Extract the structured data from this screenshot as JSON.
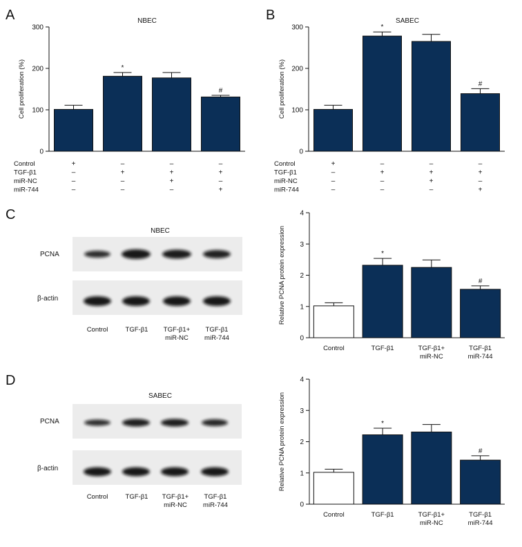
{
  "colors": {
    "bar_fill": "#0b2f57",
    "control_fill": "#ffffff",
    "axis": "#111111"
  },
  "chart_data": [
    {
      "panel": "A",
      "type": "bar",
      "title": "NBEC",
      "ylabel": "Cell proliferation (%)",
      "ylim": [
        0,
        300
      ],
      "yticks": [
        0,
        100,
        200,
        300
      ],
      "categories": [
        "1",
        "2",
        "3",
        "4"
      ],
      "values": [
        101,
        181,
        177,
        131
      ],
      "errors": [
        10,
        9,
        13,
        4
      ],
      "significance": [
        "",
        "*",
        "",
        "#"
      ],
      "control_white": false,
      "conditions": [
        {
          "label": "Control",
          "signs": [
            "+",
            "–",
            "–",
            "–"
          ]
        },
        {
          "label": "TGF-β1",
          "signs": [
            "–",
            "+",
            "+",
            "+"
          ]
        },
        {
          "label": "miR-NC",
          "signs": [
            "–",
            "–",
            "+",
            "–"
          ]
        },
        {
          "label": "miR-744",
          "signs": [
            "–",
            "–",
            "–",
            "+"
          ]
        }
      ]
    },
    {
      "panel": "B",
      "type": "bar",
      "title": "SABEC",
      "ylabel": "Cell proliferation (%)",
      "ylim": [
        0,
        300
      ],
      "yticks": [
        0,
        100,
        200,
        300
      ],
      "categories": [
        "1",
        "2",
        "3",
        "4"
      ],
      "values": [
        101,
        278,
        265,
        139
      ],
      "errors": [
        10,
        10,
        17,
        12
      ],
      "significance": [
        "",
        "*",
        "",
        "#"
      ],
      "control_white": false,
      "conditions": [
        {
          "label": "Control",
          "signs": [
            "+",
            "–",
            "–",
            "–"
          ]
        },
        {
          "label": "TGF-β1",
          "signs": [
            "–",
            "+",
            "+",
            "+"
          ]
        },
        {
          "label": "miR-NC",
          "signs": [
            "–",
            "–",
            "+",
            "–"
          ]
        },
        {
          "label": "miR-744",
          "signs": [
            "–",
            "–",
            "–",
            "+"
          ]
        }
      ]
    },
    {
      "panel": "C",
      "type": "bar",
      "title": "",
      "ylabel": "Relative PCNA protein expression",
      "ylim": [
        0,
        4
      ],
      "yticks": [
        0,
        1,
        2,
        3,
        4
      ],
      "categories": [
        [
          "Control"
        ],
        [
          "TGF-β1"
        ],
        [
          "TGF-β1+",
          "miR-NC"
        ],
        [
          "TGF-β1",
          "miR-744"
        ]
      ],
      "values": [
        1.02,
        2.32,
        2.25,
        1.55
      ],
      "errors": [
        0.1,
        0.22,
        0.24,
        0.11
      ],
      "significance": [
        "",
        "*",
        "",
        "#"
      ],
      "control_white": true
    },
    {
      "panel": "D",
      "type": "bar",
      "title": "",
      "ylabel": "Relative PCNA protein expression",
      "ylim": [
        0,
        4
      ],
      "yticks": [
        0,
        1,
        2,
        3,
        4
      ],
      "categories": [
        [
          "Control"
        ],
        [
          "TGF-β1"
        ],
        [
          "TGF-β1+",
          "miR-NC"
        ],
        [
          "TGF-β1",
          "miR-744"
        ]
      ],
      "values": [
        1.02,
        2.22,
        2.31,
        1.41
      ],
      "errors": [
        0.1,
        0.21,
        0.24,
        0.14
      ],
      "significance": [
        "",
        "*",
        "",
        "#"
      ],
      "control_white": true
    }
  ],
  "blots": [
    {
      "panel": "C",
      "title": "NBEC",
      "rows": [
        "PCNA",
        "β-actin"
      ],
      "lanes": [
        [
          "Control"
        ],
        [
          "TGF-β1"
        ],
        [
          "TGF-β1+",
          "miR-NC"
        ],
        [
          "TGF-β1",
          "miR-744"
        ]
      ]
    },
    {
      "panel": "D",
      "title": "SABEC",
      "rows": [
        "PCNA",
        "β-actin"
      ],
      "lanes": [
        [
          "Control"
        ],
        [
          "TGF-β1"
        ],
        [
          "TGF-β1+",
          "miR-NC"
        ],
        [
          "TGF-β1",
          "miR-744"
        ]
      ]
    }
  ]
}
